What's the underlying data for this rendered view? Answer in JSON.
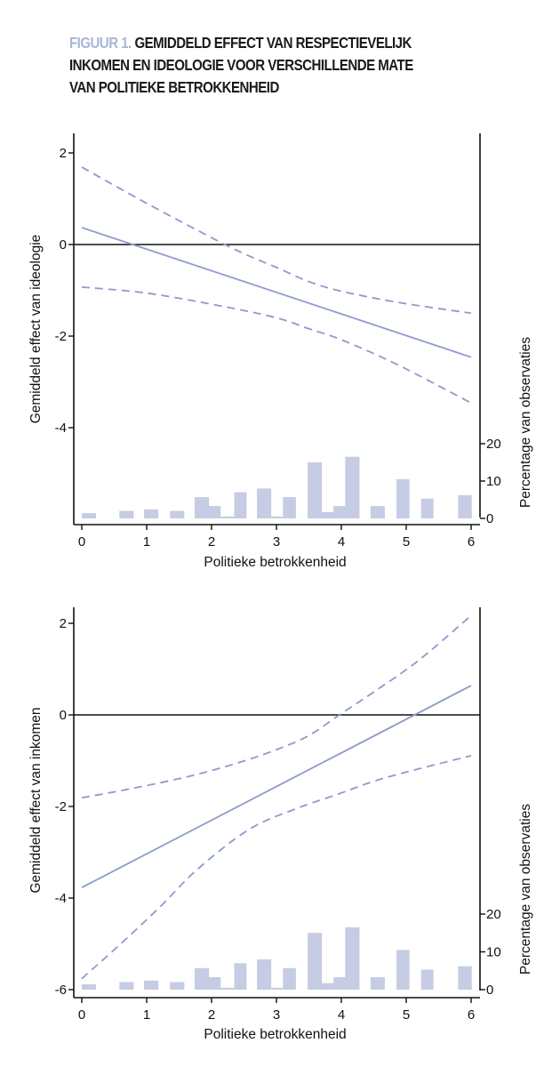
{
  "title": {
    "lead": "FIGUUR 1.",
    "line1": " GEMIDDELD EFFECT VAN RESPECTIEVELIJK",
    "line2": "INKOMEN EN IDEOLOGIE VOOR VERSCHILLENDE MATE",
    "line3": "VAN POLITIEKE BETROKKENHEID"
  },
  "colors": {
    "line": "#8c9cc8",
    "bar": "#c5cce3",
    "axis": "#111111",
    "lead": "#a9b7d6"
  },
  "chart_data": [
    {
      "type": "line",
      "xlabel": "Politieke betrokkenheid",
      "ylabel": "Gemiddeld effect van ideologie",
      "y2label": "Percentage van observaties",
      "xlim": [
        0,
        6
      ],
      "ylim": [
        -6,
        2.3
      ],
      "xticks": [
        "0",
        "1",
        "2",
        "3",
        "4",
        "5",
        "6"
      ],
      "yticks": [
        "2",
        "0",
        "-2",
        "-4"
      ],
      "ytick_values": [
        2,
        0,
        -2,
        -4
      ],
      "y2ticks": [
        "20",
        "10",
        "0"
      ],
      "y2tick_values": [
        20,
        10,
        0
      ],
      "reference_line": 0,
      "series": [
        {
          "name": "effect",
          "style": "solid",
          "x": [
            0,
            6
          ],
          "y": [
            0.37,
            -2.46
          ]
        },
        {
          "name": "upper_ci",
          "style": "dashed",
          "x": [
            0,
            1,
            2,
            2.5,
            3,
            3.5,
            4,
            4.86,
            6
          ],
          "y": [
            1.69,
            0.9,
            0.15,
            -0.2,
            -0.5,
            -0.81,
            -1.02,
            -1.26,
            -1.5
          ]
        },
        {
          "name": "lower_ci",
          "style": "dashed",
          "x": [
            0,
            1,
            2.1,
            3,
            3.5,
            4,
            4.86,
            6
          ],
          "y": [
            -0.93,
            -1.06,
            -1.33,
            -1.6,
            -1.84,
            -2.08,
            -2.62,
            -3.46
          ]
        }
      ],
      "histogram": {
        "bins": [
          [
            0,
            0.22,
            1.4
          ],
          [
            0.58,
            0.8,
            2.0
          ],
          [
            0.96,
            1.18,
            2.4
          ],
          [
            1.36,
            1.58,
            2.0
          ],
          [
            1.74,
            1.96,
            5.7
          ],
          [
            1.94,
            2.14,
            3.3
          ],
          [
            2.14,
            2.35,
            0.5
          ],
          [
            2.35,
            2.54,
            7.0
          ],
          [
            2.7,
            2.92,
            8.0
          ],
          [
            2.92,
            3.1,
            0.5
          ],
          [
            3.1,
            3.3,
            5.7
          ],
          [
            3.48,
            3.7,
            15.0
          ],
          [
            3.67,
            3.89,
            1.7
          ],
          [
            3.88,
            4.08,
            3.3
          ],
          [
            4.06,
            4.28,
            16.5
          ],
          [
            4.45,
            4.67,
            3.3
          ],
          [
            4.85,
            5.05,
            10.5
          ],
          [
            5.23,
            5.42,
            5.3
          ],
          [
            5.8,
            6.01,
            6.2
          ]
        ]
      }
    },
    {
      "type": "line",
      "xlabel": "Politieke betrokkenheid",
      "ylabel": "Gemiddeld effect van inkomen",
      "y2label": "Percentage van observaties",
      "xlim": [
        0,
        6
      ],
      "ylim": [
        -6.15,
        2.2
      ],
      "xticks": [
        "0",
        "1",
        "2",
        "3",
        "4",
        "5",
        "6"
      ],
      "yticks": [
        "2",
        "0",
        "-2",
        "-4",
        "-6"
      ],
      "ytick_values": [
        2,
        0,
        -2,
        -4,
        -6
      ],
      "y2ticks": [
        "20",
        "10",
        "0"
      ],
      "y2tick_values": [
        20,
        10,
        0
      ],
      "reference_line": 0,
      "series": [
        {
          "name": "effect",
          "style": "solid",
          "x": [
            0,
            6
          ],
          "y": [
            -3.77,
            0.64
          ]
        },
        {
          "name": "upper_ci",
          "style": "dashed",
          "x": [
            0,
            0.8,
            1.66,
            2.4,
            3.0,
            3.5,
            3.97,
            4.5,
            5.2,
            6
          ],
          "y": [
            -1.81,
            -1.6,
            -1.34,
            -1.05,
            -0.76,
            -0.45,
            0.0,
            0.5,
            1.2,
            2.17
          ]
        },
        {
          "name": "lower_ci",
          "style": "dashed",
          "x": [
            0,
            0.6,
            1.2,
            1.8,
            2.58,
            3.3,
            3.95,
            4.5,
            5.08,
            6
          ],
          "y": [
            -5.76,
            -5.0,
            -4.2,
            -3.35,
            -2.5,
            -2.05,
            -1.73,
            -1.45,
            -1.22,
            -0.89
          ]
        }
      ],
      "histogram": {
        "bins": [
          [
            0,
            0.22,
            1.4
          ],
          [
            0.58,
            0.8,
            2.0
          ],
          [
            0.96,
            1.18,
            2.4
          ],
          [
            1.36,
            1.58,
            2.0
          ],
          [
            1.74,
            1.96,
            5.7
          ],
          [
            1.94,
            2.14,
            3.3
          ],
          [
            2.14,
            2.35,
            0.5
          ],
          [
            2.35,
            2.54,
            7.0
          ],
          [
            2.7,
            2.92,
            8.0
          ],
          [
            2.92,
            3.1,
            0.5
          ],
          [
            3.1,
            3.3,
            5.7
          ],
          [
            3.48,
            3.7,
            15.0
          ],
          [
            3.67,
            3.89,
            1.7
          ],
          [
            3.88,
            4.08,
            3.3
          ],
          [
            4.06,
            4.28,
            16.5
          ],
          [
            4.45,
            4.67,
            3.3
          ],
          [
            4.85,
            5.05,
            10.5
          ],
          [
            5.23,
            5.42,
            5.3
          ],
          [
            5.8,
            6.01,
            6.2
          ]
        ]
      }
    }
  ]
}
